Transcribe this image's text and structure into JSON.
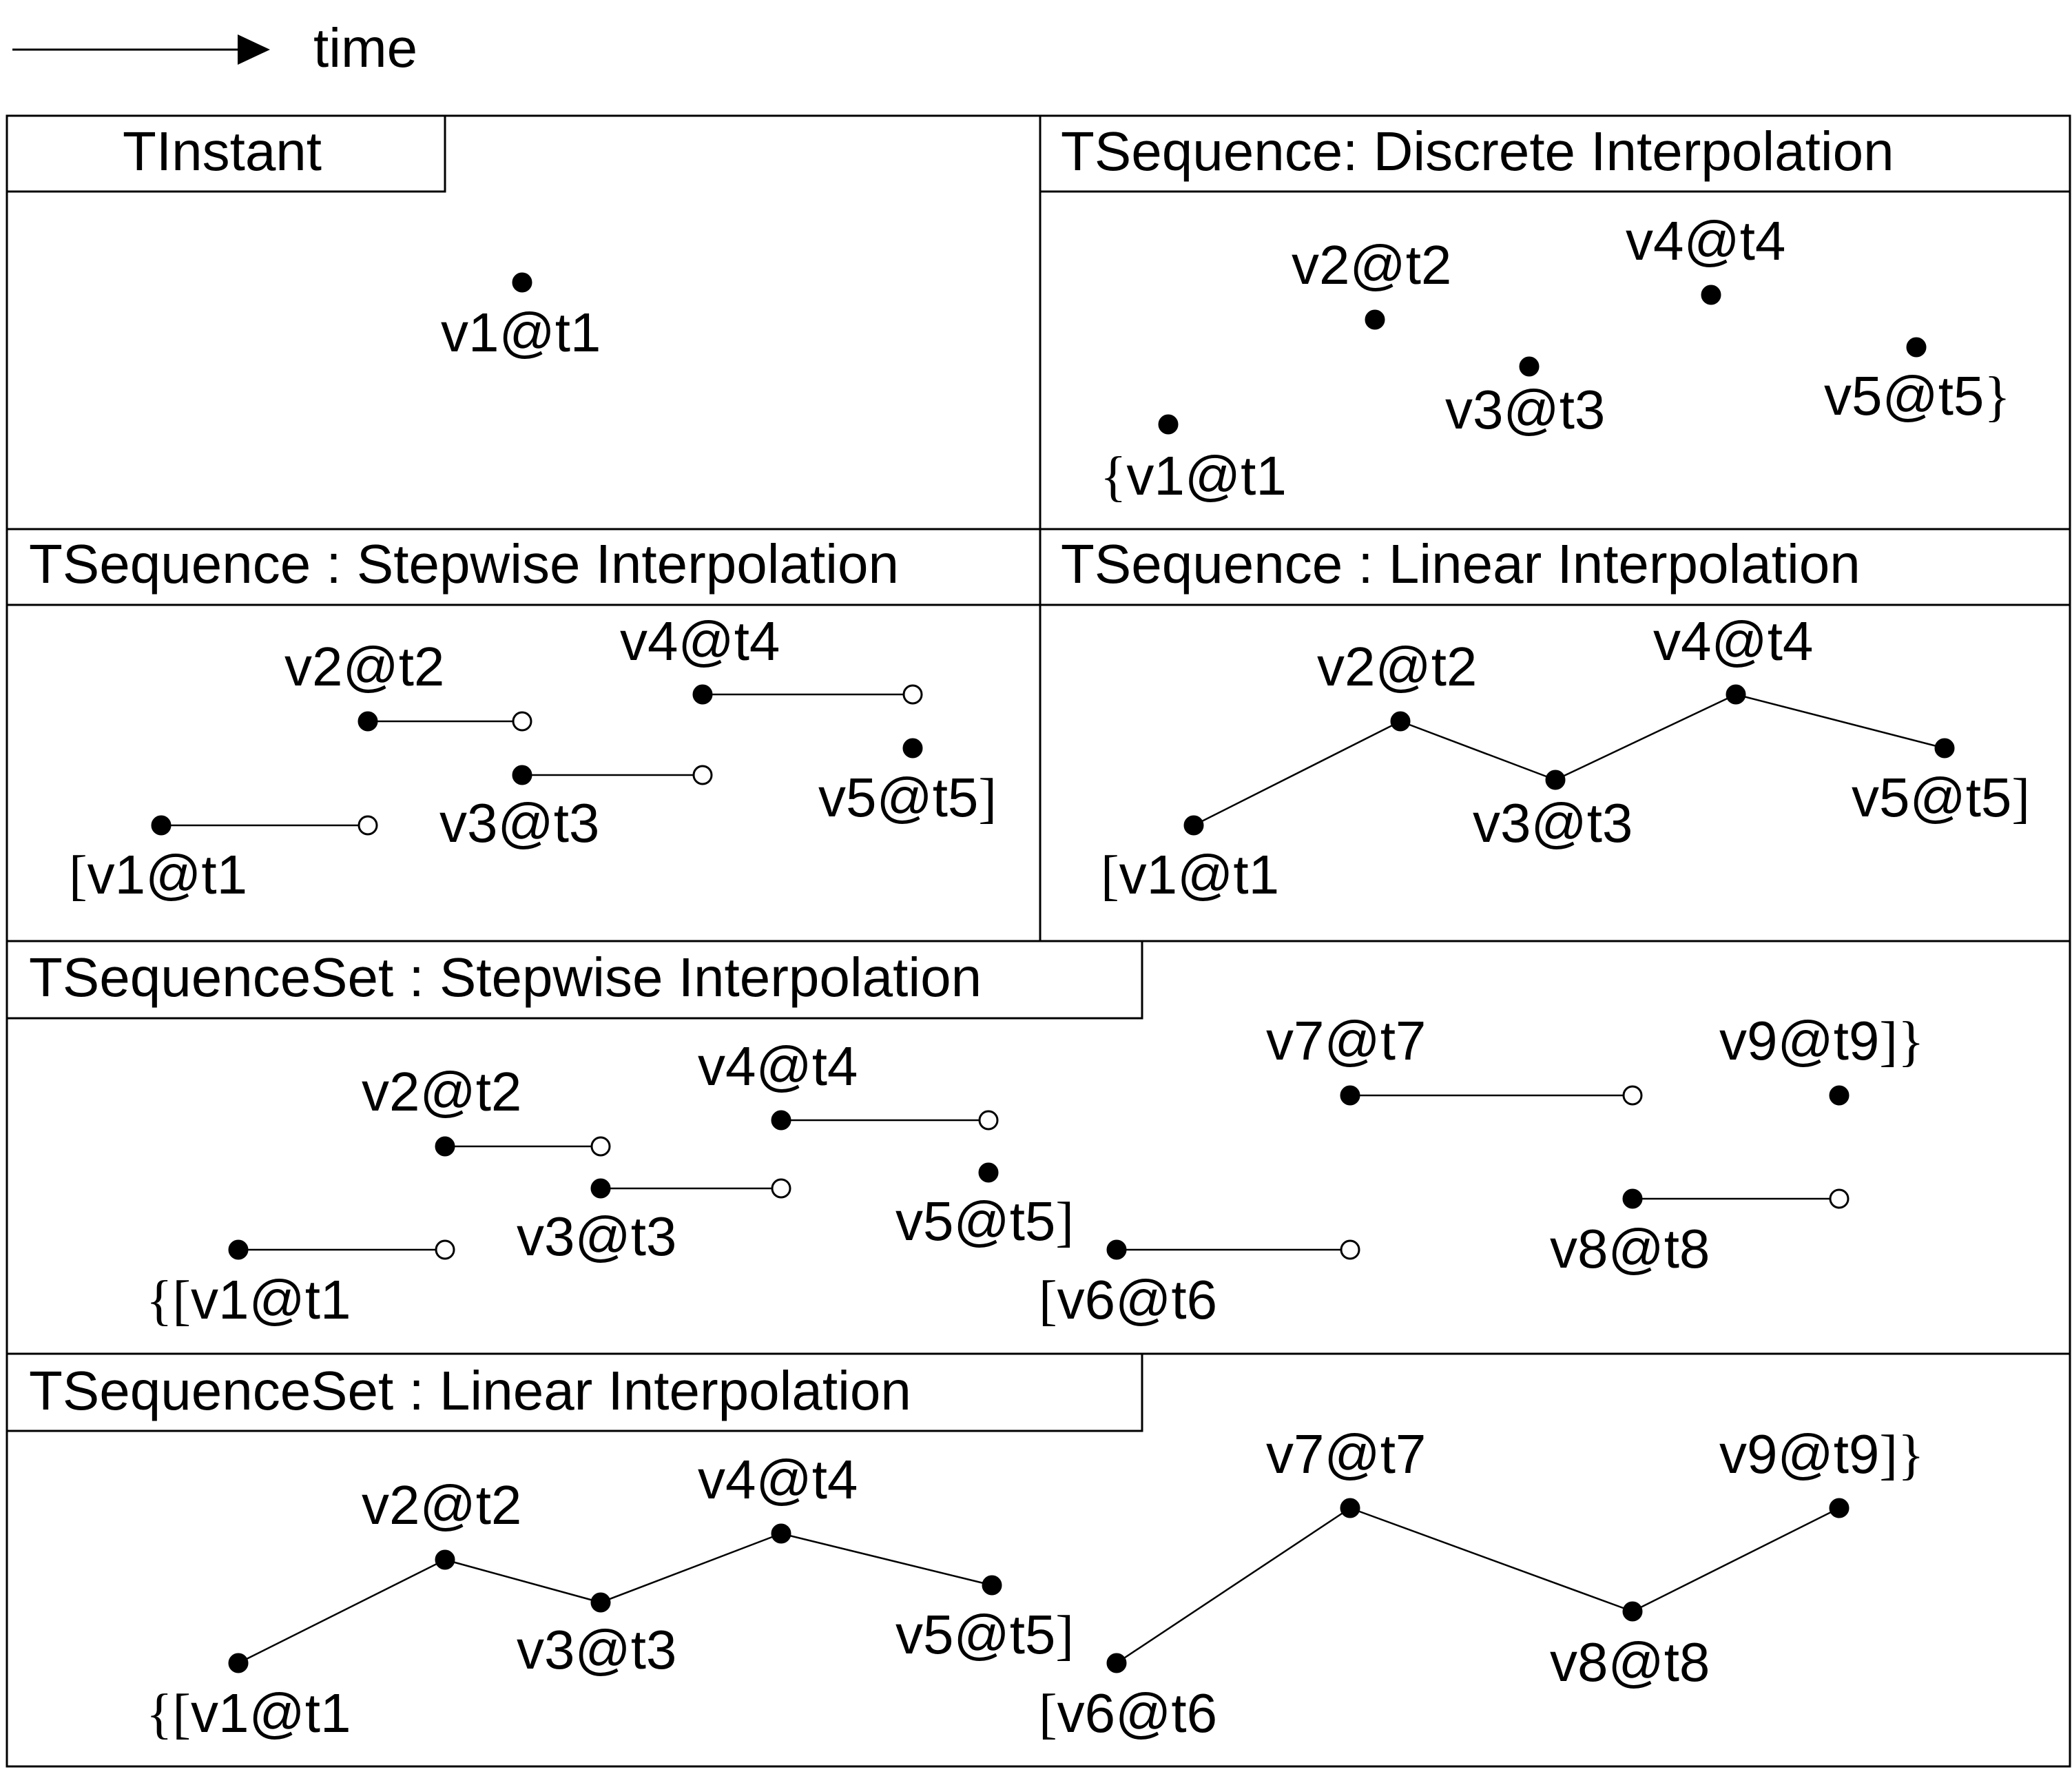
{
  "legend": {
    "time_label": "time"
  },
  "panels": [
    {
      "id": "tinstant",
      "title": "TInstant",
      "points": [
        {
          "label": "v1@t1"
        }
      ]
    },
    {
      "id": "tsequence-discrete",
      "title": "TSequence: Discrete Interpolation",
      "points": [
        {
          "prefix": "{",
          "label": "v1@t1"
        },
        {
          "label": "v2@t2"
        },
        {
          "label": "v3@t3"
        },
        {
          "label": "v4@t4"
        },
        {
          "label": "v5@t5",
          "suffix": "}"
        }
      ]
    },
    {
      "id": "tsequence-stepwise",
      "title": "TSequence : Stepwise Interpolation",
      "points": [
        {
          "prefix": "[",
          "label": "v1@t1"
        },
        {
          "label": "v2@t2"
        },
        {
          "label": "v3@t3"
        },
        {
          "label": "v4@t4"
        },
        {
          "label": "v5@t5",
          "suffix": "]"
        }
      ]
    },
    {
      "id": "tsequence-linear",
      "title": "TSequence : Linear Interpolation",
      "points": [
        {
          "prefix": "[",
          "label": "v1@t1"
        },
        {
          "label": "v2@t2"
        },
        {
          "label": "v3@t3"
        },
        {
          "label": "v4@t4"
        },
        {
          "label": "v5@t5",
          "suffix": "]"
        }
      ]
    },
    {
      "id": "tsequenceset-stepwise",
      "title": "TSequenceSet : Stepwise Interpolation",
      "points": [
        {
          "prefix": "{[",
          "label": "v1@t1"
        },
        {
          "label": "v2@t2"
        },
        {
          "label": "v3@t3"
        },
        {
          "label": "v4@t4"
        },
        {
          "label": "v5@t5",
          "suffix": "]"
        },
        {
          "prefix": "[",
          "label": "v6@t6"
        },
        {
          "label": "v7@t7"
        },
        {
          "label": "v8@t8"
        },
        {
          "label": "v9@t9",
          "suffix": "]}"
        }
      ]
    },
    {
      "id": "tsequenceset-linear",
      "title": "TSequenceSet : Linear Interpolation",
      "points": [
        {
          "prefix": "{[",
          "label": "v1@t1"
        },
        {
          "label": "v2@t2"
        },
        {
          "label": "v3@t3"
        },
        {
          "label": "v4@t4"
        },
        {
          "label": "v5@t5",
          "suffix": "]"
        },
        {
          "prefix": "[",
          "label": "v6@t6"
        },
        {
          "label": "v7@t7"
        },
        {
          "label": "v8@t8"
        },
        {
          "label": "v9@t9",
          "suffix": "]}"
        }
      ]
    }
  ]
}
